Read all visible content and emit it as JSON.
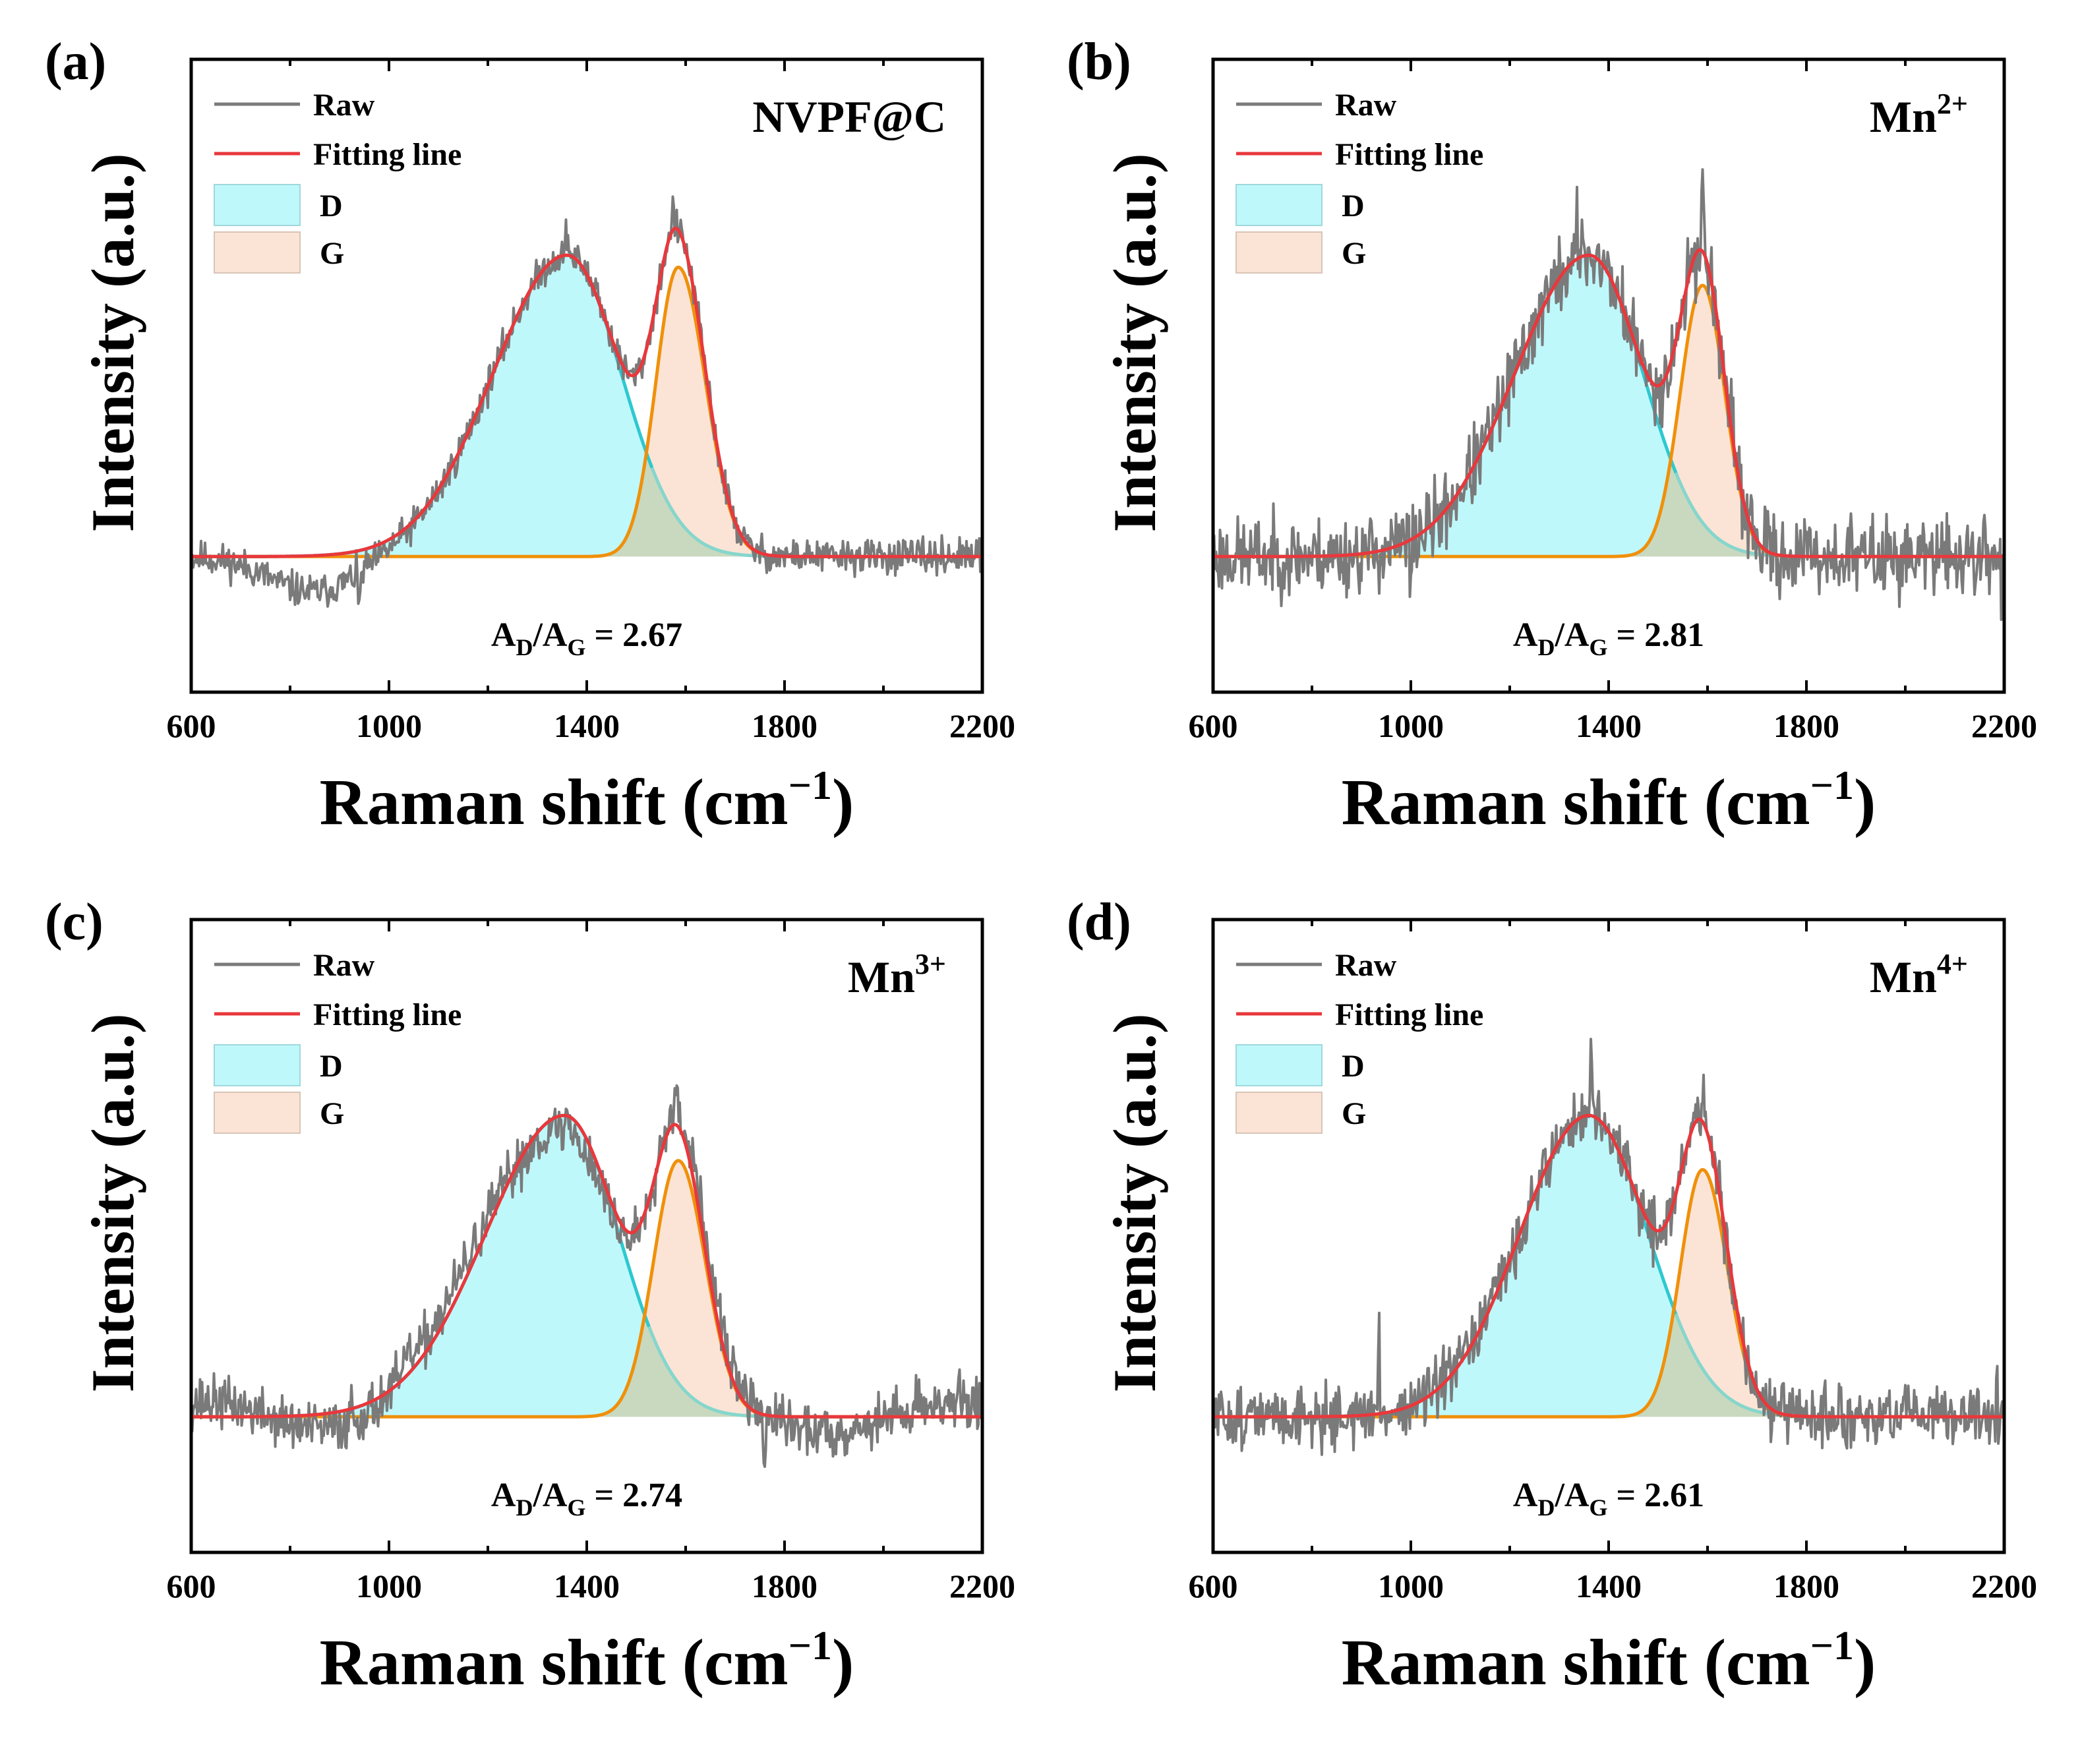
{
  "figure": {
    "xlabel": "Raman shift",
    "xlabel_unit": "cm",
    "xlabel_unit_exp": "−1",
    "ylabel": "Intensity (a.u.)",
    "legend": {
      "raw": "Raw",
      "fit": "Fitting line",
      "d": "D",
      "g": "G"
    },
    "colors": {
      "raw": "#7a7a7a",
      "fit": "#e8383c",
      "d_line": "#2ec8d0",
      "d_fill": "#bff8fb",
      "g_line": "#f0900a",
      "g_fill": "#fbe4d6",
      "overlap": "#c9d9bf",
      "d_tail": "#86d6cc"
    }
  },
  "chart_data": [
    {
      "type": "line",
      "panel_label": "(a)",
      "sample": "NVPF@C",
      "sample_sup": "",
      "ratio_text": "= 2.67",
      "ratio_value": 2.67,
      "title": "",
      "xlabel": "Raman shift (cm−1)",
      "ylabel": "Intensity (a.u.)",
      "xlim": [
        600,
        2200
      ],
      "xticks": [
        600,
        1000,
        1400,
        1800,
        2200
      ],
      "baseline": 0,
      "ylim": [
        -0.45,
        1.65
      ],
      "peaks": {
        "D": {
          "center": 1360,
          "height": 1.0,
          "sigma_left": 150,
          "sigma_right": 110
        },
        "G": {
          "center": 1585,
          "height": 0.96,
          "sigma_left": 45,
          "sigma_right": 55
        }
      },
      "raw_noise": 0.04,
      "raw_spikes": [
        [
          1575,
          0.12
        ],
        [
          1360,
          0.08
        ],
        [
          1420,
          0.06
        ],
        [
          940,
          -0.1
        ]
      ],
      "raw_dip": {
        "center": 850,
        "width": 90,
        "depth": -0.12
      },
      "raw_wave": {
        "amp": 0.0,
        "period": 60
      },
      "seed": 11
    },
    {
      "type": "line",
      "panel_label": "(b)",
      "sample": "Mn",
      "sample_sup": "2+",
      "ratio_text": "= 2.81",
      "ratio_value": 2.81,
      "title": "",
      "xlabel": "Raman shift (cm−1)",
      "ylabel": "Intensity (a.u.)",
      "xlim": [
        600,
        2200
      ],
      "xticks": [
        600,
        1000,
        1400,
        1800,
        2200
      ],
      "baseline": 0,
      "ylim": [
        -0.45,
        1.65
      ],
      "peaks": {
        "D": {
          "center": 1360,
          "height": 1.0,
          "sigma_left": 150,
          "sigma_right": 110
        },
        "G": {
          "center": 1590,
          "height": 0.9,
          "sigma_left": 45,
          "sigma_right": 45
        }
      },
      "raw_noise": 0.09,
      "raw_spikes": [
        [
          1590,
          0.2
        ],
        [
          1335,
          0.14
        ],
        [
          1000,
          -0.14
        ],
        [
          2195,
          -0.14
        ],
        [
          1270,
          0.08
        ]
      ],
      "raw_dip": {
        "center": 850,
        "width": 90,
        "depth": 0.0
      },
      "raw_wave": {
        "amp": 0.0,
        "period": 60
      },
      "seed": 23
    },
    {
      "type": "line",
      "panel_label": "(c)",
      "sample": "Mn",
      "sample_sup": "3+",
      "ratio_text": "= 2.74",
      "ratio_value": 2.74,
      "title": "",
      "xlabel": "Raman shift (cm−1)",
      "ylabel": "Intensity (a.u.)",
      "xlim": [
        600,
        2200
      ],
      "xticks": [
        600,
        1000,
        1400,
        1800,
        2200
      ],
      "baseline": 0,
      "ylim": [
        -0.45,
        1.65
      ],
      "peaks": {
        "D": {
          "center": 1355,
          "height": 1.0,
          "sigma_left": 160,
          "sigma_right": 110
        },
        "G": {
          "center": 1585,
          "height": 0.85,
          "sigma_left": 50,
          "sigma_right": 55
        }
      },
      "raw_noise": 0.06,
      "raw_spikes": [
        [
          1580,
          0.14
        ],
        [
          1040,
          0.12
        ],
        [
          925,
          0.1
        ],
        [
          1760,
          -0.14
        ],
        [
          1360,
          0.06
        ]
      ],
      "raw_dip": {
        "center": 850,
        "width": 90,
        "depth": 0.0
      },
      "raw_wave": {
        "amp": 0.05,
        "period": 80
      },
      "seed": 37
    },
    {
      "type": "line",
      "panel_label": "(d)",
      "sample": "Mn",
      "sample_sup": "4+",
      "ratio_text": "= 2.61",
      "ratio_value": 2.61,
      "title": "",
      "xlabel": "Raman shift (cm−1)",
      "ylabel": "Intensity (a.u.)",
      "xlim": [
        600,
        2200
      ],
      "xticks": [
        600,
        1000,
        1400,
        1800,
        2200
      ],
      "baseline": 0,
      "ylim": [
        -0.45,
        1.65
      ],
      "peaks": {
        "D": {
          "center": 1360,
          "height": 1.0,
          "sigma_left": 140,
          "sigma_right": 120
        },
        "G": {
          "center": 1590,
          "height": 0.82,
          "sigma_left": 45,
          "sigma_right": 50
        }
      },
      "raw_noise": 0.07,
      "raw_spikes": [
        [
          1365,
          0.22
        ],
        [
          1590,
          0.14
        ],
        [
          935,
          0.22
        ],
        [
          1880,
          -0.12
        ],
        [
          2185,
          0.14
        ]
      ],
      "raw_dip": {
        "center": 850,
        "width": 90,
        "depth": 0.0
      },
      "raw_wave": {
        "amp": 0.0,
        "period": 60
      },
      "seed": 51
    }
  ]
}
